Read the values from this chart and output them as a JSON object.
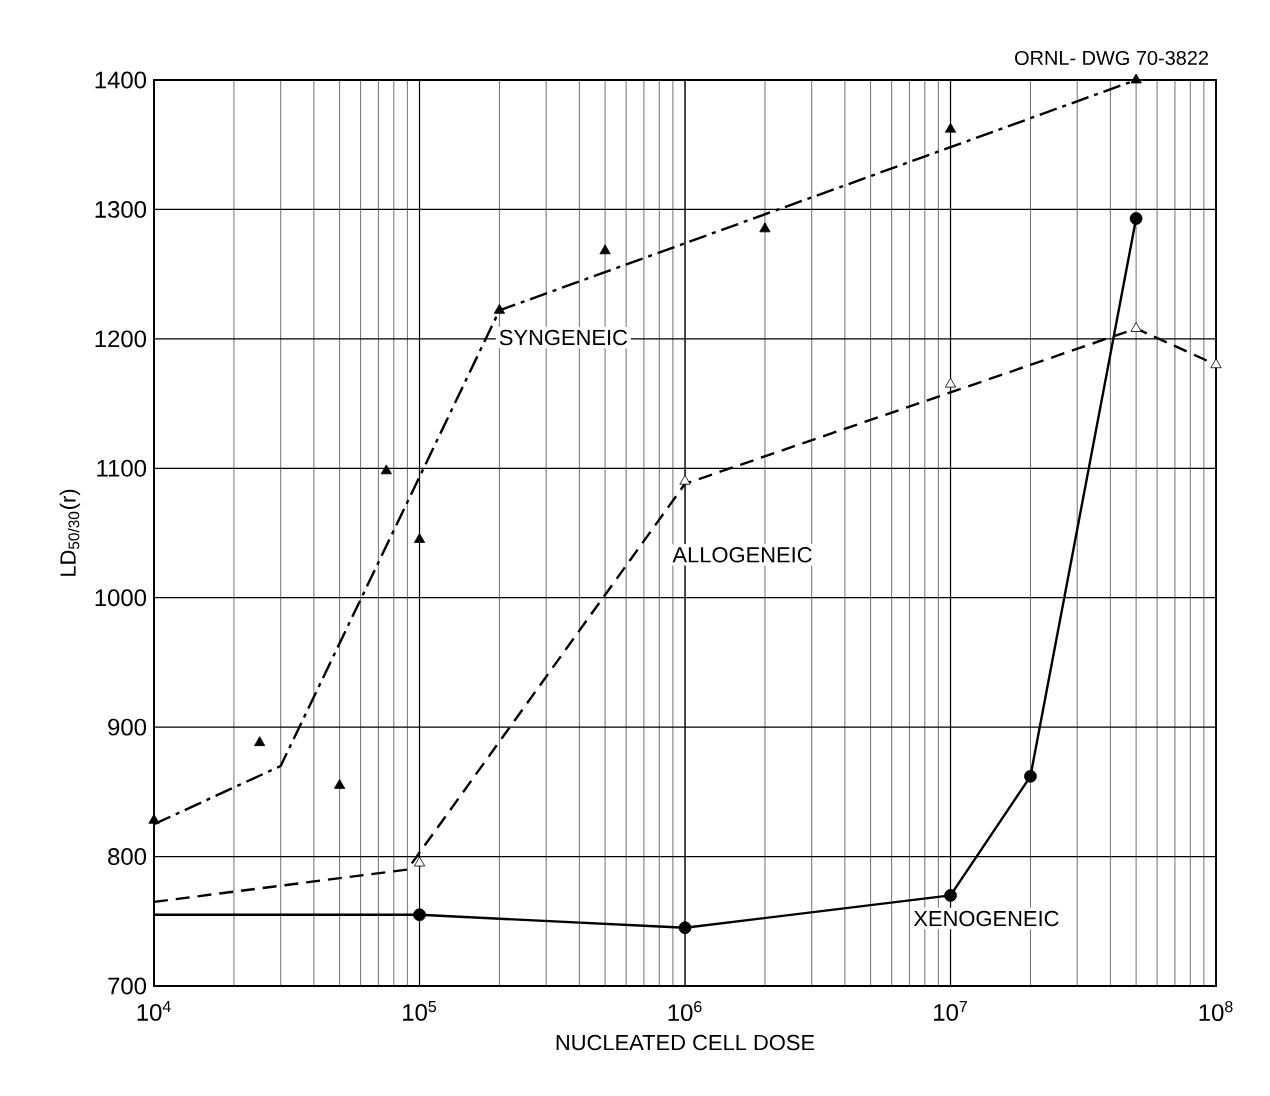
{
  "chart_data": {
    "type": "line",
    "ylabel": "LD$_{50/30}$(r)",
    "xlabel": "NUCLEATED CELL DOSE",
    "annotations": [
      "ORNL- DWG 70-3822"
    ],
    "log": "x",
    "grid": true,
    "xlim": [
      10000,
      100000000
    ],
    "ylim": [
      700,
      1400
    ],
    "xticks": [
      {
        "value": 10000,
        "label": "10$^{4}$"
      },
      {
        "value": 100000,
        "label": "10$^{5}$"
      },
      {
        "value": 1000000,
        "label": "10$^{6}$"
      },
      {
        "value": 10000000,
        "label": "10$^{7}$"
      },
      {
        "value": 100000000,
        "label": "10$^{8}$"
      }
    ],
    "yticks": [
      700,
      800,
      900,
      1000,
      1100,
      1200,
      1300,
      1400
    ],
    "series": [
      {
        "name": "SYNGENEIC",
        "color": "#000000",
        "line_style": "dashdot",
        "marker": "none",
        "x": [
          10000,
          30000,
          200000,
          50000000
        ],
        "values": [
          825,
          870,
          1222,
          1400
        ]
      },
      {
        "type": "scatter",
        "color": "#000000",
        "marker": "triangle",
        "x": [
          10000,
          25000,
          50000,
          75000,
          100000,
          200000,
          500000,
          2000000,
          10000000,
          50000000
        ],
        "values": [
          828,
          888,
          855,
          1098,
          1045,
          1222,
          1268,
          1285,
          1362,
          1400
        ]
      },
      {
        "name": "ALLOGENEIC",
        "color": "#000000",
        "line_style": "dashed",
        "marker": "none",
        "x": [
          10000,
          90000,
          1000000,
          50000000,
          100000000
        ],
        "values": [
          765,
          790,
          1088,
          1208,
          1180
        ]
      },
      {
        "type": "scatter",
        "color": "#000000",
        "marker": "triangle_open",
        "x": [
          100000,
          1000000,
          10000000,
          50000000,
          100000000
        ],
        "values": [
          795,
          1090,
          1165,
          1208,
          1180
        ]
      },
      {
        "name": "XENOGENEIC",
        "color": "#000000",
        "line_style": "solid",
        "marker": "none",
        "x": [
          10000,
          100000,
          1000000,
          10000000,
          20000000,
          50000000
        ],
        "values": [
          755,
          755,
          745,
          770,
          862,
          1293
        ]
      },
      {
        "type": "scatter",
        "color": "#000000",
        "marker": "circle",
        "x": [
          100000,
          1000000,
          10000000,
          20000000,
          50000000
        ],
        "values": [
          755,
          745,
          770,
          862,
          1293
        ]
      }
    ]
  }
}
